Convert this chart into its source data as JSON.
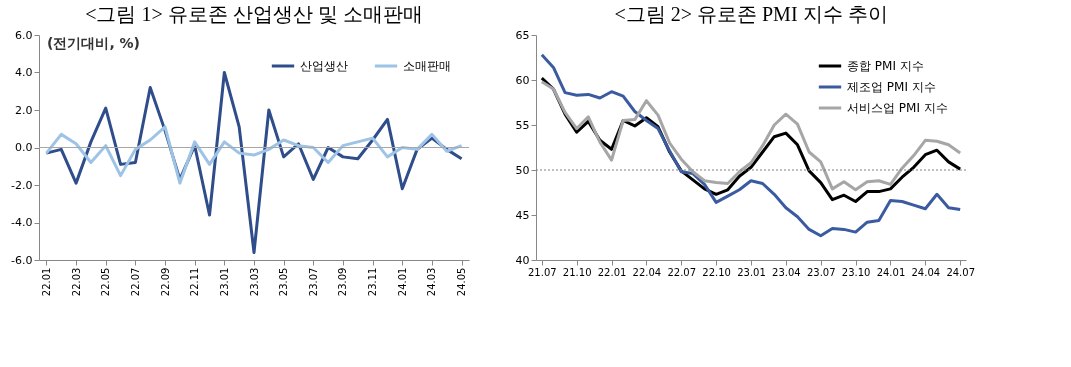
{
  "chart_data": [
    {
      "type": "line",
      "title": "<그림 1> 유로존 산업생산 및 소매판매",
      "annotations": [
        "(전기대비, %)"
      ],
      "categories": [
        "22.01",
        null,
        "22.03",
        null,
        "22.05",
        null,
        "22.07",
        null,
        "22.09",
        null,
        "22.11",
        null,
        "23.01",
        null,
        "23.03",
        null,
        "23.05",
        null,
        "23.07",
        null,
        "23.09",
        null,
        "23.11",
        null,
        "24.01",
        null,
        "24.03",
        null,
        "24.05"
      ],
      "series": [
        {
          "name": "산업생산",
          "color": "#2e4d8a",
          "values": [
            -0.3,
            -0.1,
            -1.9,
            0.3,
            2.1,
            -0.9,
            -0.8,
            3.2,
            0.9,
            -1.7,
            0.1,
            -3.6,
            4.0,
            1.1,
            -5.6,
            2.0,
            -0.5,
            0.2,
            -1.7,
            0.0,
            -0.5,
            -0.6,
            0.4,
            1.5,
            -2.2,
            -0.1,
            0.5,
            -0.1,
            -0.6
          ]
        },
        {
          "name": "소매판매",
          "color": "#9dc3e6",
          "values": [
            -0.3,
            0.7,
            0.2,
            -0.8,
            0.1,
            -1.5,
            -0.1,
            0.4,
            1.1,
            -1.9,
            0.3,
            -0.9,
            0.3,
            -0.3,
            -0.4,
            -0.1,
            0.4,
            0.1,
            0.0,
            -0.8,
            0.1,
            0.3,
            0.5,
            -0.5,
            0.0,
            -0.1,
            0.7,
            -0.2,
            0.1
          ]
        }
      ],
      "ylim": [
        -6,
        6
      ],
      "yticks": [
        {
          "value": -6,
          "label": "-6.0"
        },
        {
          "value": -4,
          "label": "-4.0"
        },
        {
          "value": -2,
          "label": "-2.0"
        },
        {
          "value": 0,
          "label": "0.0"
        },
        {
          "value": 2,
          "label": "2.0"
        },
        {
          "value": 4,
          "label": "4.0"
        },
        {
          "value": 6,
          "label": "6.0"
        }
      ],
      "ref_lines": [
        {
          "axis": "y",
          "value": 0,
          "color": "#a6a6a6",
          "line_style": "solid"
        }
      ],
      "grid": false,
      "legend": "top right",
      "marker": "none",
      "line_style": "solid"
    },
    {
      "type": "line",
      "title": "<그림 2> 유로존 PMI 지수 추이",
      "categories": [
        "21.07",
        null,
        null,
        "21.10",
        null,
        null,
        "22.01",
        null,
        null,
        "22.04",
        null,
        null,
        "22.07",
        null,
        null,
        "22.10",
        null,
        null,
        "23.01",
        null,
        null,
        "23.04",
        null,
        null,
        "23.07",
        null,
        null,
        "23.10",
        null,
        null,
        "24.01",
        null,
        null,
        "24.04",
        null,
        null,
        "24.07"
      ],
      "series": [
        {
          "name": "종합 PMI 지수",
          "color": "#000000",
          "values": [
            60.2,
            59.0,
            56.2,
            54.2,
            55.4,
            53.3,
            52.3,
            55.5,
            54.9,
            55.8,
            54.8,
            52.0,
            49.9,
            48.9,
            47.9,
            47.3,
            47.8,
            49.3,
            50.3,
            52.0,
            53.7,
            54.1,
            52.8,
            49.9,
            48.6,
            46.7,
            47.2,
            46.5,
            47.6,
            47.6,
            47.9,
            49.2,
            50.3,
            51.7,
            52.2,
            50.9,
            50.1
          ]
        },
        {
          "name": "제조업 PMI 지수",
          "color": "#3a5ba0",
          "values": [
            62.8,
            61.4,
            58.6,
            58.3,
            58.4,
            58.0,
            58.7,
            58.2,
            56.5,
            55.5,
            54.6,
            52.1,
            49.8,
            49.6,
            48.4,
            46.4,
            47.1,
            47.8,
            48.8,
            48.5,
            47.3,
            45.8,
            44.8,
            43.4,
            42.7,
            43.5,
            43.4,
            43.1,
            44.2,
            44.4,
            46.6,
            46.5,
            46.1,
            45.7,
            47.3,
            45.8,
            45.6
          ]
        },
        {
          "name": "서비스업 PMI 지수",
          "color": "#a6a6a6",
          "values": [
            59.8,
            59.0,
            56.4,
            54.6,
            55.9,
            53.1,
            51.1,
            55.5,
            55.6,
            57.7,
            56.1,
            53.0,
            51.2,
            49.8,
            48.8,
            48.6,
            48.5,
            49.8,
            50.8,
            52.7,
            55.0,
            56.2,
            55.1,
            52.0,
            50.9,
            47.9,
            48.7,
            47.8,
            48.7,
            48.8,
            48.4,
            50.2,
            51.6,
            53.3,
            53.2,
            52.8,
            51.9
          ]
        }
      ],
      "ylim": [
        40,
        65
      ],
      "yticks": [
        40,
        45,
        50,
        55,
        60,
        65
      ],
      "ref_lines": [
        {
          "axis": "y",
          "value": 50,
          "color": "#808080",
          "line_style": "dotted"
        }
      ],
      "grid": false,
      "legend": "top right",
      "marker": "none",
      "line_style": "solid"
    }
  ]
}
